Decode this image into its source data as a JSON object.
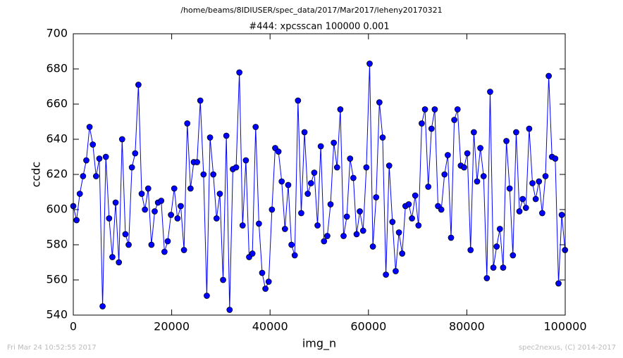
{
  "chart_data": {
    "type": "line",
    "suptitle": "/home/beams/8IDIUSER/spec_data/2017/Mar2017/leheny20170321",
    "title": "#444: xpcsscan 100000 0.001",
    "xlabel": "img_n",
    "ylabel": "ccdc",
    "footer_left": "Fri Mar 24 10:52:55 2017",
    "footer_right": "spec2nexus, (C) 2014-2017",
    "xlim": [
      0,
      100000
    ],
    "xticks": [
      0,
      20000,
      40000,
      60000,
      80000,
      100000
    ],
    "ylim": [
      540,
      700
    ],
    "yticks": [
      540,
      560,
      580,
      600,
      620,
      640,
      660,
      680,
      700
    ],
    "grid": false,
    "x": [
      0,
      662,
      1324,
      1986,
      2648,
      3310,
      3972,
      4634,
      5296,
      5958,
      6620,
      7282,
      7944,
      8606,
      9268,
      9930,
      10592,
      11254,
      11916,
      12578,
      13240,
      13902,
      14564,
      15226,
      15888,
      16550,
      17212,
      17874,
      18536,
      19198,
      19860,
      20522,
      21184,
      21846,
      22508,
      23170,
      23832,
      24494,
      25156,
      25818,
      26480,
      27142,
      27804,
      28466,
      29128,
      29790,
      30452,
      31114,
      31776,
      32438,
      33100,
      33762,
      34424,
      35086,
      35748,
      36410,
      37072,
      37734,
      38396,
      39058,
      39720,
      40382,
      41044,
      41706,
      42368,
      43030,
      43692,
      44354,
      45016,
      45678,
      46340,
      47002,
      47664,
      48326,
      48988,
      49650,
      50312,
      50974,
      51636,
      52298,
      52960,
      53622,
      54284,
      54946,
      55608,
      56270,
      56932,
      57594,
      58256,
      58918,
      59580,
      60242,
      60904,
      61566,
      62228,
      62890,
      63552,
      64214,
      64876,
      65538,
      66200,
      66862,
      67524,
      68186,
      68848,
      69510,
      70172,
      70834,
      71496,
      72158,
      72820,
      73482,
      74144,
      74806,
      75468,
      76130,
      76792,
      77454,
      78116,
      78778,
      79440,
      80102,
      80764,
      81426,
      82088,
      82750,
      83412,
      84074,
      84736,
      85398,
      86060,
      86722,
      87384,
      88046,
      88708,
      89370,
      90032,
      90694,
      91356,
      92018,
      92680,
      93342,
      94004,
      94666,
      95328,
      95990,
      96652,
      97314,
      97976,
      98638,
      99300,
      99962
    ],
    "series": [
      {
        "name": "ccdc",
        "color": "#0000ff",
        "marker_edge": "#000000",
        "values": [
          602,
          594,
          609,
          619,
          628,
          647,
          637,
          619,
          629,
          545,
          630,
          595,
          573,
          604,
          570,
          640,
          586,
          580,
          624,
          632,
          671,
          609,
          600,
          612,
          580,
          599,
          604,
          605,
          576,
          582,
          597,
          612,
          595,
          602,
          577,
          649,
          612,
          627,
          627,
          662,
          620,
          551,
          641,
          620,
          595,
          609,
          560,
          642,
          543,
          623,
          624,
          678,
          591,
          628,
          573,
          575,
          647,
          592,
          564,
          555,
          559,
          600,
          635,
          633,
          616,
          589,
          614,
          580,
          574,
          662,
          598,
          644,
          609,
          615,
          621,
          591,
          636,
          582,
          585,
          603,
          638,
          624,
          657,
          585,
          596,
          629,
          618,
          586,
          599,
          588,
          624,
          683,
          579,
          607,
          661,
          641,
          563,
          625,
          593,
          565,
          587,
          575,
          602,
          603,
          595,
          608,
          591,
          649,
          657,
          613,
          646,
          657,
          602,
          600,
          620,
          631,
          584,
          651,
          657,
          625,
          624,
          632,
          577,
          644,
          616,
          635,
          619,
          561,
          667,
          567,
          579,
          589,
          567,
          639,
          612,
          574,
          644,
          599,
          606,
          601,
          646,
          615,
          606,
          616,
          598,
          619,
          676,
          630,
          629,
          558,
          597,
          577
        ]
      }
    ]
  }
}
